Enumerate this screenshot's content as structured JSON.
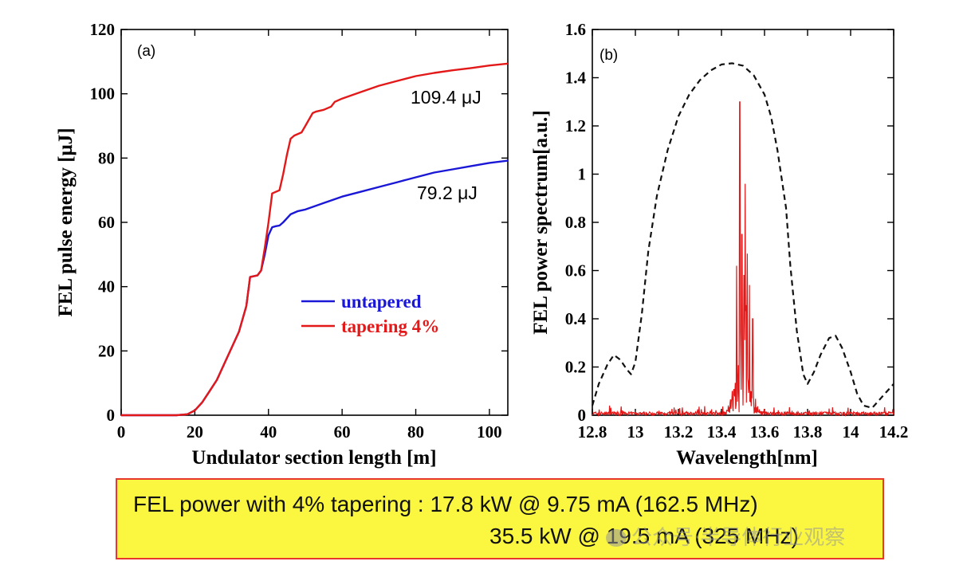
{
  "chart_data": [
    {
      "type": "line",
      "panel_label": "(a)",
      "xlabel": "Undulator section length [m]",
      "ylabel": "FEL pulse energy [μJ]",
      "xlim": [
        0,
        105
      ],
      "ylim": [
        0,
        120
      ],
      "x_ticks": [
        "0",
        "20",
        "40",
        "60",
        "80",
        "100"
      ],
      "y_ticks": [
        "0",
        "20",
        "40",
        "60",
        "80",
        "100",
        "120"
      ],
      "legend_position": "center-right",
      "series": [
        {
          "name": "untapered",
          "color": "#1a17d6",
          "x": [
            0,
            15,
            18,
            20,
            22,
            24,
            26,
            28,
            30,
            32,
            34,
            35,
            37,
            38,
            39,
            40,
            41,
            42,
            43,
            44,
            46,
            48,
            50,
            55,
            60,
            65,
            70,
            75,
            80,
            85,
            90,
            95,
            100,
            105
          ],
          "y": [
            0,
            0,
            0.3,
            1.5,
            4,
            7.5,
            11,
            16,
            21,
            26,
            34,
            43,
            43.5,
            45,
            50,
            56,
            58.5,
            58.8,
            59,
            60,
            62.5,
            63.5,
            64,
            66,
            68,
            69.5,
            71,
            72.5,
            74,
            75.5,
            76.5,
            77.5,
            78.5,
            79.2
          ]
        },
        {
          "name": "tapering 4%",
          "color": "#e31919",
          "x": [
            0,
            15,
            18,
            20,
            22,
            24,
            26,
            28,
            30,
            32,
            34,
            35,
            37,
            38,
            39,
            40,
            41,
            42,
            43,
            44,
            45,
            46,
            47,
            48,
            49,
            50,
            52,
            53,
            55,
            57,
            58,
            60,
            65,
            70,
            75,
            80,
            85,
            90,
            95,
            100,
            105
          ],
          "y": [
            0,
            0,
            0.3,
            1.5,
            4,
            7.5,
            11,
            16,
            21,
            26,
            34,
            43,
            43.5,
            45,
            52,
            60,
            69,
            69.5,
            70,
            75,
            81,
            86,
            87,
            87.5,
            88,
            90,
            94,
            94.5,
            95,
            96,
            97.5,
            98.5,
            100.5,
            102.5,
            104,
            105.5,
            106.5,
            107.3,
            108,
            108.8,
            109.4
          ]
        }
      ],
      "annotations": [
        "109.4 μJ",
        "79.2 μJ"
      ]
    },
    {
      "type": "line",
      "panel_label": "(b)",
      "xlabel": "Wavelength[nm]",
      "ylabel": "FEL power spectrum[a.u.]",
      "xlim": [
        12.8,
        14.2
      ],
      "ylim": [
        0,
        1.6
      ],
      "x_ticks": [
        "12.8",
        "13",
        "13.2",
        "13.4",
        "13.6",
        "13.8",
        "14",
        "14.2"
      ],
      "y_ticks": [
        "0",
        "0.2",
        "0.4",
        "0.6",
        "0.8",
        "1",
        "1.2",
        "1.4",
        "1.6"
      ],
      "series": [
        {
          "name": "dashed envelope",
          "color": "#111111",
          "style": "dashed",
          "x": [
            12.8,
            12.83,
            12.87,
            12.9,
            12.93,
            12.96,
            12.98,
            13.0,
            13.03,
            13.06,
            13.1,
            13.15,
            13.2,
            13.25,
            13.3,
            13.35,
            13.4,
            13.45,
            13.5,
            13.55,
            13.6,
            13.63,
            13.66,
            13.7,
            13.72,
            13.75,
            13.78,
            13.8,
            13.83,
            13.86,
            13.9,
            13.93,
            13.96,
            14.0,
            14.03,
            14.06,
            14.1,
            14.14,
            14.2
          ],
          "y": [
            0.04,
            0.13,
            0.21,
            0.25,
            0.23,
            0.19,
            0.17,
            0.22,
            0.42,
            0.68,
            0.91,
            1.1,
            1.24,
            1.33,
            1.39,
            1.43,
            1.455,
            1.46,
            1.45,
            1.41,
            1.33,
            1.24,
            1.1,
            0.86,
            0.62,
            0.35,
            0.17,
            0.13,
            0.18,
            0.25,
            0.32,
            0.33,
            0.28,
            0.18,
            0.09,
            0.04,
            0.03,
            0.07,
            0.13
          ]
        },
        {
          "name": "FEL spectrum (red, noisy)",
          "color": "#e31919",
          "style": "solid",
          "center_nm": 13.5,
          "peak_values": [
            {
              "x": 13.485,
              "y": 1.3
            },
            {
              "x": 13.47,
              "y": 0.62
            },
            {
              "x": 13.495,
              "y": 0.75
            },
            {
              "x": 13.505,
              "y": 0.58
            },
            {
              "x": 13.51,
              "y": 0.96
            },
            {
              "x": 13.52,
              "y": 0.67
            },
            {
              "x": 13.53,
              "y": 0.54
            },
            {
              "x": 13.545,
              "y": 0.4
            }
          ],
          "noise_floor": 0.01
        }
      ]
    }
  ],
  "legend": {
    "untapered": "untapered",
    "tapering": "tapering 4%"
  },
  "summary": {
    "line1": "FEL power with 4% tapering : 17.8 kW @ 9.75 mA (162.5 MHz)",
    "line2": "35.5 kW @ 19.5 mA (325 MHz)"
  },
  "watermark": "公众号·半导体行业观察"
}
